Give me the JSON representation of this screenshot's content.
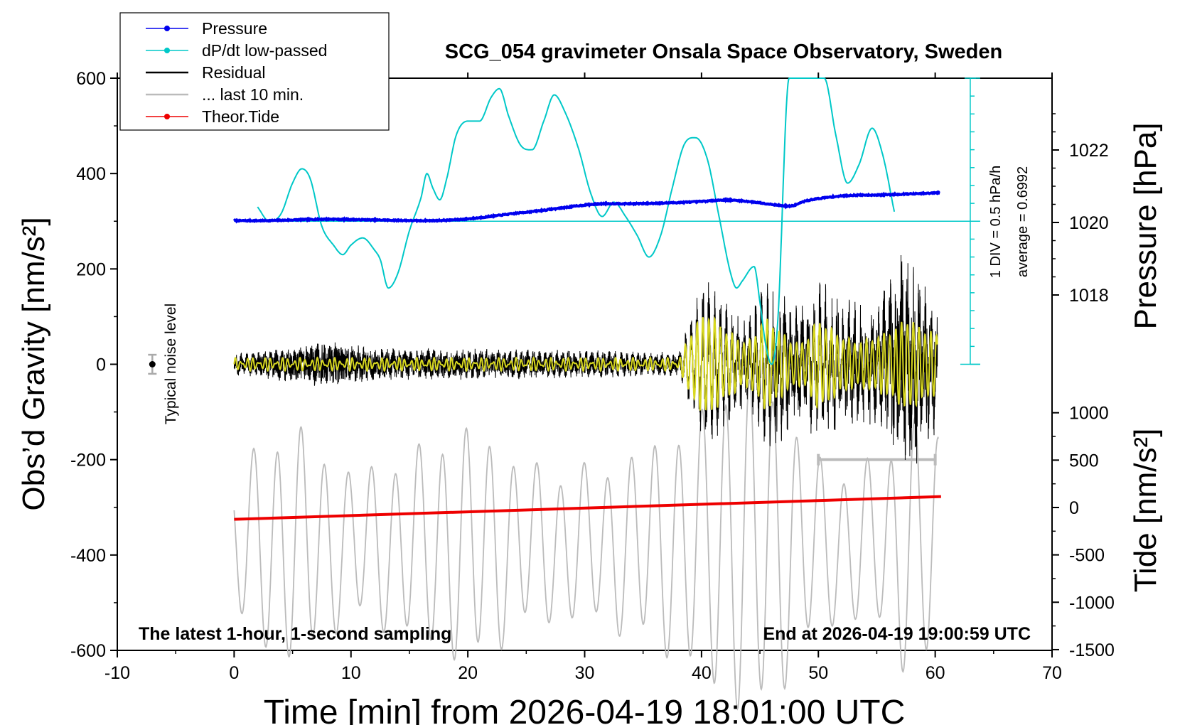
{
  "chart_data": {
    "type": "line",
    "title": "SCG_054 gravimeter Onsala Space Observatory, Sweden",
    "xlabel": "Time [min] from 2026-04-19 18:01:00 UTC",
    "ylabel_left": "Obs’d Gravity [nm/s²]",
    "ylabel_right_pressure": "Pressure [hPa]",
    "ylabel_right_tide": "Tide [nm/s²]",
    "xlim": [
      -10,
      70
    ],
    "ylim_left": [
      -600,
      600
    ],
    "x_ticks": [
      "-10",
      "0",
      "10",
      "20",
      "30",
      "40",
      "50",
      "60",
      "70"
    ],
    "y_ticks_left": [
      "600",
      "400",
      "200",
      "0",
      "-200",
      "-400",
      "-600"
    ],
    "pressure_ticks": [
      "1022",
      "1020",
      "1018"
    ],
    "tide_ticks": [
      "1000",
      "500",
      "0",
      "-500",
      "-1000",
      "-1500"
    ],
    "footer_left": "The latest 1-hour, 1-second sampling",
    "footer_right": "End at 2026-04-19 19:00:59 UTC",
    "noise_label": "Typical noise level",
    "dpdt_scale_label": "1 DIV = 0.5 hPa/h",
    "dpdt_average_label": "average = 0.6992",
    "legend": [
      {
        "label": "Pressure",
        "color": "#0000ee",
        "marker": true
      },
      {
        "label": "dP/dt low-passed",
        "color": "#00c8c8",
        "marker": true
      },
      {
        "label": "Residual",
        "color": "#000000",
        "marker": false
      },
      {
        "label": "... last 10 min.",
        "color": "#bbbbbb",
        "marker": false
      },
      {
        "label": "Theor.Tide",
        "color": "#ee0000",
        "marker": true
      }
    ],
    "series": [
      {
        "name": "Pressure",
        "color": "#0000ee",
        "axis": "pressure",
        "x": [
          0,
          2,
          4,
          6,
          8,
          10,
          12,
          14,
          16,
          18,
          20,
          22,
          24,
          26,
          28,
          30,
          32,
          34,
          36,
          38,
          40,
          42,
          44,
          46,
          47.5,
          49,
          51,
          53,
          55,
          57,
          59,
          60.4
        ],
        "y": [
          1020.05,
          1020.05,
          1020.06,
          1020.08,
          1020.09,
          1020.08,
          1020.07,
          1020.06,
          1020.05,
          1020.06,
          1020.1,
          1020.17,
          1020.25,
          1020.32,
          1020.4,
          1020.48,
          1020.52,
          1020.52,
          1020.53,
          1020.55,
          1020.58,
          1020.62,
          1020.58,
          1020.5,
          1020.45,
          1020.6,
          1020.7,
          1020.75,
          1020.76,
          1020.78,
          1020.8,
          1020.82
        ]
      },
      {
        "name": "dP/dt low-passed",
        "color": "#00c8c8",
        "axis": "left",
        "x": [
          2,
          3,
          4,
          5,
          5.8,
          6.5,
          7.5,
          8.5,
          9.3,
          10,
          11,
          12,
          12.5,
          13.2,
          14,
          15,
          16,
          16.5,
          17,
          17.6,
          18.2,
          19,
          20,
          21,
          22,
          22.7,
          23.5,
          24.5,
          25.5,
          26.5,
          27.4,
          28.3,
          29.5,
          30.5,
          31.5,
          32.5,
          33.5,
          34.5,
          35.5,
          36.5,
          37.5,
          38.5,
          39.5,
          40.5,
          41.5,
          42.5,
          43,
          43.5,
          44.5,
          45,
          45.5,
          46,
          46.5,
          47.5,
          48.5,
          48.8,
          49.3,
          49.8,
          50.5,
          51.5,
          52.5,
          53.5,
          54.6,
          55.5,
          56.5
        ],
        "y": [
          330,
          300,
          315,
          380,
          410,
          390,
          290,
          250,
          230,
          250,
          265,
          240,
          220,
          160,
          190,
          280,
          350,
          400,
          370,
          345,
          390,
          480,
          510,
          510,
          560,
          578,
          520,
          460,
          450,
          510,
          565,
          530,
          450,
          360,
          310,
          340,
          310,
          270,
          225,
          270,
          370,
          460,
          475,
          430,
          310,
          190,
          160,
          175,
          205,
          130,
          40,
          0,
          80,
          600,
          600,
          600,
          600,
          600,
          600,
          480,
          380,
          420,
          495,
          440,
          320
        ]
      },
      {
        "name": "Residual",
        "color": "#000000",
        "axis": "left"
      },
      {
        "name": "... last 10 min.",
        "color": "#bbbbbb",
        "axis": "left",
        "x": [
          50,
          60
        ]
      },
      {
        "name": "Theor.Tide",
        "color": "#ee0000",
        "axis": "tide",
        "x": [
          0,
          60.5
        ],
        "y": [
          -125,
          115
        ]
      }
    ],
    "noise_bar": {
      "x": -7,
      "y": 0,
      "half_range": 20
    }
  }
}
